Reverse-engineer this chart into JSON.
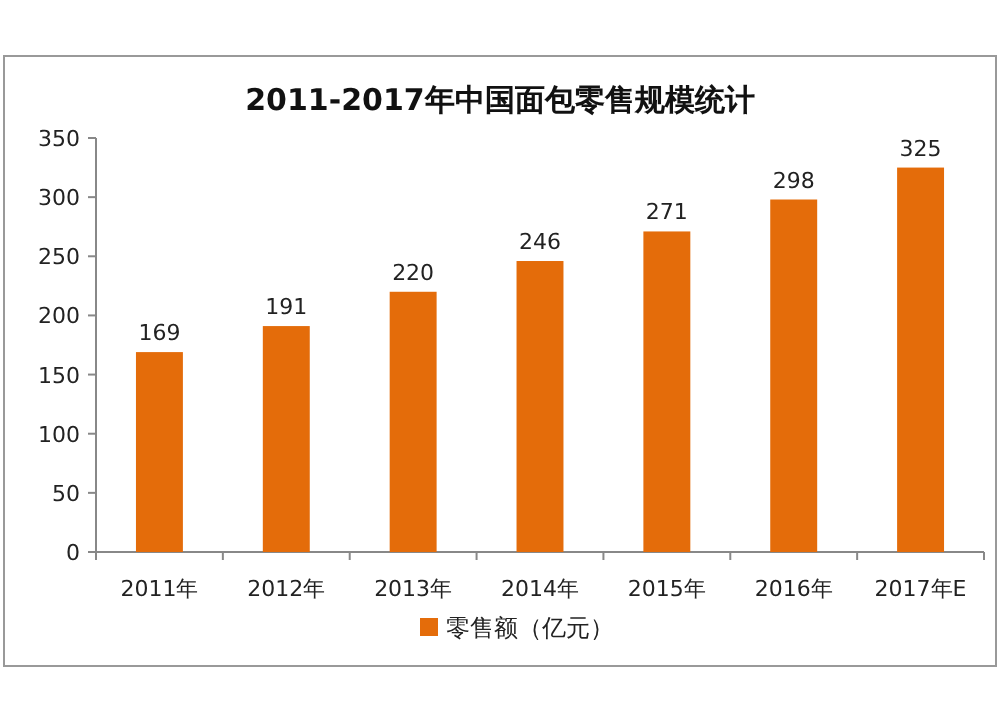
{
  "chart_data": {
    "type": "bar",
    "title": "2011-2017年中国面包零售规模统计",
    "categories": [
      "2011年",
      "2012年",
      "2013年",
      "2014年",
      "2015年",
      "2016年",
      "2017年E"
    ],
    "series": [
      {
        "name": "零售额（亿元）",
        "color": "#e46c0a",
        "values": [
          169,
          191,
          220,
          246,
          271,
          298,
          325
        ]
      }
    ],
    "ylim": [
      0,
      350
    ],
    "yticks": [
      0,
      50,
      100,
      150,
      200,
      250,
      300,
      350
    ],
    "data_labels": true,
    "legend": "bottom",
    "grid": false
  }
}
